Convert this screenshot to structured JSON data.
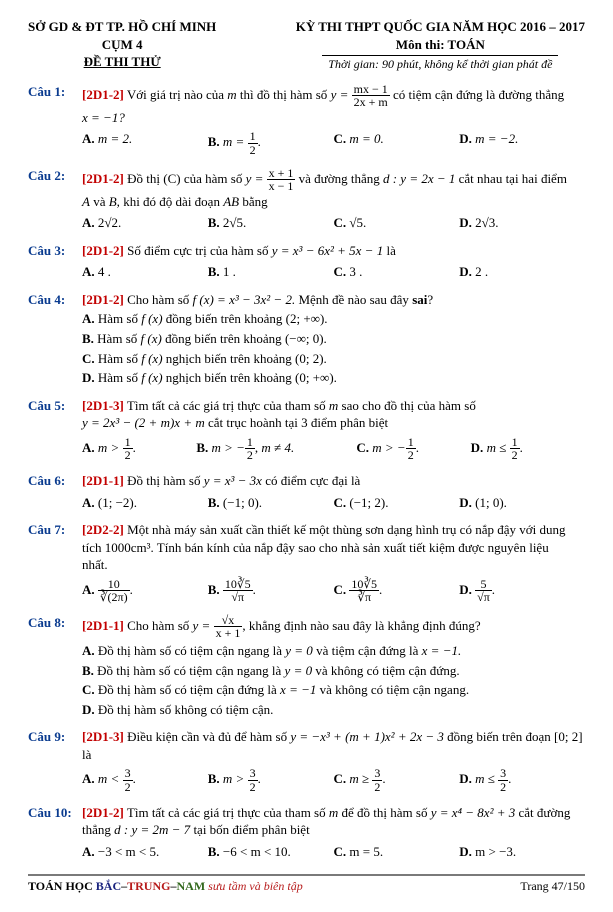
{
  "header": {
    "left1": "SỞ GD & ĐT TP. HỒ CHÍ MINH",
    "left2": "CỤM 4",
    "left3": "ĐỀ THI THỬ",
    "right1": "KỲ THI THPT QUỐC GIA NĂM HỌC 2016 – 2017",
    "right2": "Môn thi: TOÁN",
    "right3": "Thời gian: 90 phút, không kể thời gian phát đề"
  },
  "q1": {
    "label": "Câu 1:",
    "tag": "[2D1-2]",
    "pre": "Với giá trị nào của ",
    "var": "m",
    "mid": " thì đồ thị hàm số ",
    "fn": "y =",
    "num": "mx − 1",
    "den": "2x + m",
    "post": " có tiệm cận đứng là đường thẳng",
    "line2": "x = −1?",
    "A": "m = 2.",
    "B": "m = ",
    "Bnum": "1",
    "Bden": "2",
    "Bpost": ".",
    "C": "m = 0.",
    "D": "m = −2."
  },
  "q2": {
    "label": "Câu 2:",
    "tag": "[2D1-2]",
    "pre": "Đồ thị (C) của hàm số ",
    "fn": "y =",
    "num": "x + 1",
    "den": "x − 1",
    "mid": " và đường thẳng ",
    "d": "d : y = 2x − 1",
    "post": " cắt nhau tại hai điểm",
    "line2a": "A",
    "line2b": " và ",
    "line2c": "B,",
    "line2d": " khi đó độ dài đoạn ",
    "line2e": "AB",
    "line2f": " bằng",
    "A": "2√2.",
    "B": "2√5.",
    "C": "√5.",
    "D": "2√3."
  },
  "q3": {
    "label": "Câu 3:",
    "tag": "[2D1-2]",
    "text": "Số điểm cực trị của hàm số ",
    "fn": "y = x³ − 6x² + 5x − 1",
    "post": " là",
    "A": "4 .",
    "B": "1 .",
    "C": "3 .",
    "D": "2 ."
  },
  "q4": {
    "label": "Câu 4:",
    "tag": "[2D1-2]",
    "text": "Cho hàm số ",
    "fn": "f (x) = x³ − 3x² − 2.",
    "post": " Mệnh đề nào sau đây ",
    "sai": "sai",
    "q": "?",
    "A": "Hàm số ",
    "Afn": "f (x)",
    "Apost": " đồng biến trên khoảng ",
    "Aint": "(2; +∞).",
    "B": "Hàm số ",
    "Bfn": "f (x)",
    "Bpost": " đồng biến trên khoảng ",
    "Bint": "(−∞; 0).",
    "C": "Hàm số ",
    "Cfn": "f (x)",
    "Cpost": " nghịch biến trên khoảng ",
    "Cint": "(0; 2).",
    "D": "Hàm số ",
    "Dfn": "f (x)",
    "Dpost": " nghịch biến trên khoảng ",
    "Dint": "(0; +∞)."
  },
  "q5": {
    "label": "Câu 5:",
    "tag": "[2D1-3]",
    "text": "Tìm tất cả các giá trị thực của tham số ",
    "m": "m",
    "post": " sao cho đồ thị của hàm số",
    "line2": "y = 2x³ − (2 + m)x + m",
    "line2b": " cắt trục hoành tại ",
    "n3": "3",
    "line2c": " điểm phân biệt",
    "Apre": "m > ",
    "Anum": "1",
    "Aden": "2",
    "Apost": ".",
    "Bpre": "m > −",
    "Bnum": "1",
    "Bden": "2",
    "Bmid": ", ",
    "Bcond": "m ≠ 4.",
    "Cpre": "m > −",
    "Cnum": "1",
    "Cden": "2",
    "Cpost": ".",
    "Dpre": "m ≤ ",
    "Dnum": "1",
    "Dden": "2",
    "Dpost": "."
  },
  "q6": {
    "label": "Câu 6:",
    "tag": "[2D1-1]",
    "text": "Đồ thị hàm số ",
    "fn": "y = x³ − 3x",
    "post": " có điểm cực đại là",
    "A": "(1; −2).",
    "B": "(−1; 0).",
    "C": "(−1; 2).",
    "D": "(1; 0)."
  },
  "q7": {
    "label": "Câu 7:",
    "tag": "[2D2-2]",
    "text": "Một nhà máy sản xuất cần thiết kế một thùng sơn dạng hình trụ có nắp đậy với dung",
    "line2a": "tích ",
    "vol": "1000cm³.",
    "line2b": " Tính bán kính của nắp đậy sao cho nhà sản xuất tiết kiệm được nguyên liệu",
    "line3": "nhất.",
    "Anum": "10",
    "Aden": "∛(2π)",
    "Apost": ".",
    "Bnum": "10∛5",
    "Bden": "√π",
    "Bpost": ".",
    "Cnum": "10∛5",
    "Cden": "∛π",
    "Cpost": ".",
    "Dnum": "5",
    "Dden": "√π",
    "Dpost": "."
  },
  "q8": {
    "label": "Câu 8:",
    "tag": "[2D1-1]",
    "text": "Cho hàm số ",
    "fn": "y =",
    "num": "√x",
    "den": "x + 1",
    "post": ", khẳng định nào sau đây là khẳng định đúng?",
    "A": "Đồ thị hàm số có tiệm cận ngang là ",
    "Aeq": "y = 0",
    "Amid": " và tiệm cận đứng là ",
    "Aeq2": "x = −1.",
    "B": "Đồ thị hàm số có tiệm cận ngang là ",
    "Beq": "y = 0",
    "Bpost": " và không có tiệm cận đứng.",
    "C": "Đồ thị hàm số có tiệm cận đứng là ",
    "Ceq": "x = −1",
    "Cpost": " và không có tiệm cận ngang.",
    "D": "Đồ thị hàm số không có tiệm cận."
  },
  "q9": {
    "label": "Câu 9:",
    "tag": "[2D1-3]",
    "text": "Điều kiện cần và đủ để hàm số ",
    "fn": "y = −x³ + (m + 1)x² + 2x − 3",
    "post": " đồng biến trên đoạn ",
    "int": "[0; 2]",
    "la": " là",
    "A": "m < ",
    "Anum": "3",
    "Aden": "2",
    "Apost": ".",
    "B": "m > ",
    "Bnum": "3",
    "Bden": "2",
    "Bpost": ".",
    "C": "m ≥ ",
    "Cnum": "3",
    "Cden": "2",
    "Cpost": ".",
    "D": "m ≤ ",
    "Dnum": "3",
    "Dden": "2",
    "Dpost": "."
  },
  "q10": {
    "label": "Câu 10:",
    "tag": "[2D1-2]",
    "text": "Tìm tất cả các giá trị thực của tham số ",
    "m": "m",
    "mid": " để đồ thị hàm số ",
    "fn": "y = x⁴ − 8x² + 3",
    "post": " cắt đường",
    "line2a": "thẳng ",
    "d": "d : y = 2m − 7",
    "line2b": " tại bốn điểm phân biệt",
    "A": "−3 < m < 5.",
    "B": "−6 < m < 10.",
    "C": "m = 5.",
    "D": "m > −3."
  },
  "footer": {
    "brand1": "TOÁN HỌC ",
    "B": "BẮC",
    "dash": "–",
    "T": "TRUNG",
    "N": "NAM",
    "cursive": " sưu tầm và biên tập",
    "page": "Trang 47/150"
  }
}
